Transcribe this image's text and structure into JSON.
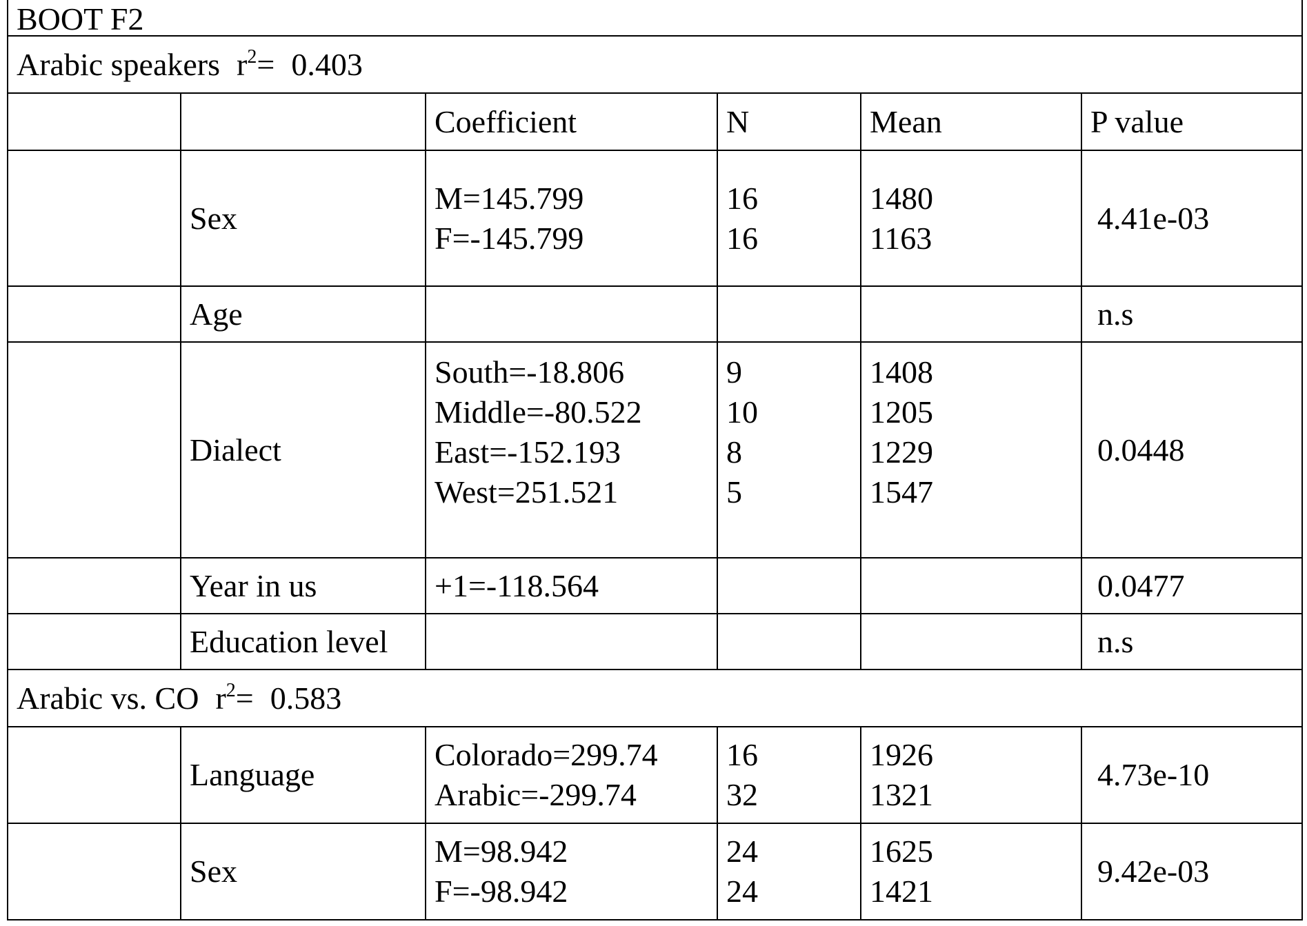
{
  "title": "BOOT F2",
  "columns": [
    "Coefficient",
    "N",
    "Mean",
    "P value"
  ],
  "sections": [
    {
      "label": "Arabic speakers",
      "r_symbol": "r",
      "exponent": "2",
      "equals": "=",
      "r2": "0.403",
      "rows": [
        {
          "factor": "Sex",
          "coefficients": [
            "M=145.799",
            "F=-145.799"
          ],
          "n": [
            "16",
            "16"
          ],
          "mean": [
            "1480",
            "1163"
          ],
          "p": "4.41e-03"
        },
        {
          "factor": "Age",
          "p": "n.s"
        },
        {
          "factor": "Dialect",
          "coefficients": [
            "South=-18.806",
            "Middle=-80.522",
            "East=-152.193",
            "West=251.521"
          ],
          "n": [
            "9",
            "10",
            "8",
            "5"
          ],
          "mean": [
            "1408",
            "1205",
            "1229",
            "1547"
          ],
          "p": "0.0448"
        },
        {
          "factor": "Year in us",
          "coefficients": [
            "+1=-118.564"
          ],
          "p": "0.0477"
        },
        {
          "factor": "Education level",
          "p": "n.s"
        }
      ]
    },
    {
      "label": "Arabic vs. CO",
      "r_symbol": "r",
      "exponent": "2",
      "equals": "=",
      "r2": "0.583",
      "rows": [
        {
          "factor": "Language",
          "coefficients": [
            "Colorado=299.74",
            "Arabic=-299.74"
          ],
          "n": [
            "16",
            "32"
          ],
          "mean": [
            "1926",
            "1321"
          ],
          "p": "4.73e-10"
        },
        {
          "factor": "Sex",
          "coefficients": [
            "M=98.942",
            "F=-98.942"
          ],
          "n": [
            "24",
            "24"
          ],
          "mean": [
            "1625",
            "1421"
          ],
          "p": "9.42e-03"
        }
      ]
    }
  ]
}
